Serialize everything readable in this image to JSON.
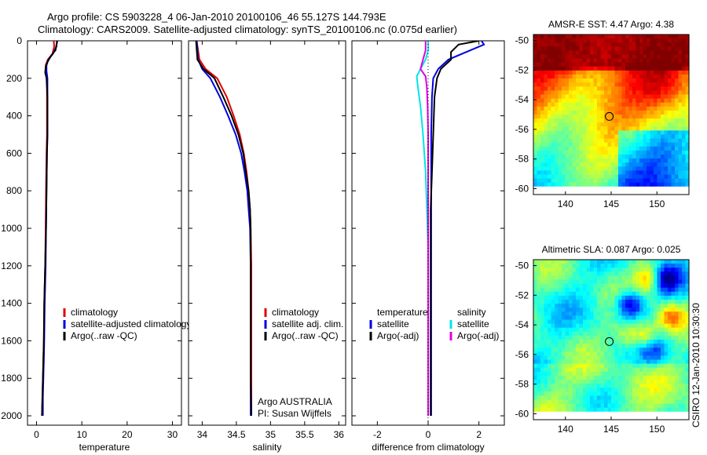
{
  "header": {
    "line1": "Argo profile: CS 5903228_4 06-Jan-2010 20100106_46 55.127S 144.793E",
    "line2": "Climatology: CARS2009. Satellite-adjusted climatology: synTS_20100106.nc (0.075d earlier)"
  },
  "credit": "CSIRO 12-Jan-2010 10:30:30",
  "colors": {
    "climatology": "#e00000",
    "satellite": "#0000e0",
    "argo": "#000000",
    "cyan": "#00e5e5",
    "magenta": "#e000e0",
    "ocean_red": "#a81a00"
  },
  "chart_data": [
    {
      "type": "line",
      "name": "temperature",
      "xlabel": "temperature",
      "ylabel": "",
      "xlim": [
        -2,
        32
      ],
      "ylim": [
        2050,
        0
      ],
      "xticks": [
        0,
        10,
        20,
        30
      ],
      "yticks": [
        0,
        200,
        400,
        600,
        800,
        1000,
        1200,
        1400,
        1600,
        1800,
        2000
      ],
      "legend": [
        "climatology",
        "satellite-adjusted climatology",
        "Argo(..raw -QC)"
      ],
      "series": [
        {
          "name": "climatology",
          "color": "#e00000",
          "x": [
            3.8,
            3.9,
            3.5,
            2.5,
            2.0,
            2.1,
            2.3,
            2.3,
            2.3,
            2.3,
            2.2,
            2.1,
            2.0,
            1.9,
            1.7,
            1.6,
            1.5,
            1.4,
            1.3,
            1.2
          ],
          "y": [
            0,
            30,
            70,
            100,
            130,
            160,
            200,
            300,
            400,
            500,
            600,
            800,
            1000,
            1200,
            1400,
            1600,
            1700,
            1800,
            1900,
            2000
          ]
        },
        {
          "name": "satellite-adjusted climatology",
          "color": "#0000e0",
          "x": [
            4.5,
            4.4,
            3.6,
            2.6,
            2.2,
            2.2,
            2.4,
            2.4,
            2.4,
            2.4,
            2.3,
            2.2,
            2.1,
            2.0,
            1.8,
            1.7,
            1.6,
            1.5,
            1.4,
            1.4
          ],
          "y": [
            0,
            30,
            70,
            100,
            130,
            160,
            200,
            300,
            400,
            500,
            600,
            800,
            1000,
            1200,
            1400,
            1600,
            1700,
            1800,
            1900,
            2000
          ]
        },
        {
          "name": "Argo(..raw -QC)",
          "color": "#000000",
          "x": [
            4.6,
            4.4,
            4.2,
            3.2,
            2.5,
            2.0,
            1.9,
            2.2,
            2.4,
            2.4,
            2.4,
            2.3,
            2.2,
            2.1,
            1.9,
            1.7,
            1.6,
            1.5,
            1.4,
            1.3,
            1.2
          ],
          "y": [
            0,
            20,
            50,
            80,
            110,
            140,
            170,
            200,
            300,
            400,
            500,
            600,
            800,
            1000,
            1200,
            1400,
            1600,
            1700,
            1800,
            1900,
            2000
          ]
        }
      ],
      "annotations": []
    },
    {
      "type": "line",
      "name": "salinity",
      "xlabel": "salinity",
      "xlim": [
        33.8,
        36.1
      ],
      "ylim": [
        2050,
        0
      ],
      "xticks": [
        34,
        34.5,
        35,
        35.5,
        36
      ],
      "xticklabels": [
        "34",
        "34.5",
        "35",
        "35.5",
        "36"
      ],
      "legend": [
        "climatology",
        "satellite adj. clim.",
        "Argo(..raw -QC)"
      ],
      "series": [
        {
          "name": "climatology",
          "color": "#e00000",
          "x": [
            33.92,
            33.96,
            34.05,
            34.22,
            34.36,
            34.46,
            34.55,
            34.61,
            34.65,
            34.68,
            34.7,
            34.71,
            34.72,
            34.72,
            34.72,
            34.72,
            34.72
          ],
          "y": [
            0,
            100,
            150,
            200,
            300,
            400,
            500,
            600,
            700,
            800,
            900,
            1000,
            1200,
            1400,
            1600,
            1800,
            2000
          ]
        },
        {
          "name": "satellite adj. clim.",
          "color": "#0000e0",
          "x": [
            33.92,
            33.94,
            34.0,
            34.12,
            34.26,
            34.38,
            34.49,
            34.57,
            34.62,
            34.66,
            34.68,
            34.7,
            34.71,
            34.71,
            34.71,
            34.71,
            34.71
          ],
          "y": [
            0,
            100,
            150,
            200,
            300,
            400,
            500,
            600,
            700,
            800,
            900,
            1000,
            1200,
            1400,
            1600,
            1800,
            2000
          ]
        },
        {
          "name": "Argo(..raw -QC)",
          "color": "#000000",
          "x": [
            33.91,
            33.93,
            34.02,
            34.18,
            34.31,
            34.43,
            34.53,
            34.6,
            34.64,
            34.68,
            34.7,
            34.71,
            34.71,
            34.71,
            34.71,
            34.71,
            34.72
          ],
          "y": [
            0,
            100,
            150,
            200,
            300,
            400,
            500,
            600,
            700,
            800,
            900,
            1000,
            1200,
            1400,
            1600,
            1800,
            2000
          ]
        }
      ],
      "annotations": [
        "Argo AUSTRALIA",
        "PI: Susan Wijffels"
      ]
    },
    {
      "type": "line",
      "name": "difference",
      "xlabel": "difference from climatology",
      "xlim": [
        -3,
        3
      ],
      "ylim": [
        2050,
        0
      ],
      "xticks": [
        -2,
        0,
        2
      ],
      "legend_groups": [
        {
          "title": "temperature",
          "items": [
            "satellite",
            "Argo(-adj)"
          ]
        },
        {
          "title": "salinity",
          "items": [
            "satellite",
            "Argo(-adj)"
          ]
        }
      ],
      "series": [
        {
          "name": "temperature satellite",
          "color": "#0000e0",
          "x": [
            2.1,
            2.2,
            1.5,
            0.8,
            0.4,
            0.2,
            0.15,
            0.12,
            0.12,
            0.12,
            0.12,
            0.12,
            0.12,
            0.12,
            0.12,
            0.12
          ],
          "y": [
            0,
            20,
            60,
            100,
            150,
            200,
            300,
            500,
            700,
            900,
            1100,
            1300,
            1500,
            1700,
            1900,
            2000
          ]
        },
        {
          "name": "temperature Argo(-adj)",
          "color": "#000000",
          "x": [
            2.0,
            1.2,
            0.9,
            0.9,
            0.5,
            0.35,
            0.25,
            0.2,
            0.15,
            0.1,
            0.1,
            0.1,
            0.1,
            0.1,
            0.1,
            0.1
          ],
          "y": [
            0,
            20,
            60,
            100,
            150,
            200,
            300,
            500,
            700,
            900,
            1100,
            1300,
            1500,
            1700,
            1900,
            2000
          ]
        },
        {
          "name": "salinity satellite",
          "color": "#00e5e5",
          "x": [
            0,
            0,
            -0.1,
            -0.3,
            -0.45,
            -0.4,
            -0.3,
            -0.2,
            -0.1,
            -0.05,
            0,
            0,
            0,
            0,
            0,
            0
          ],
          "y": [
            0,
            50,
            100,
            150,
            190,
            250,
            350,
            500,
            700,
            900,
            1100,
            1300,
            1500,
            1700,
            1900,
            2000
          ]
        },
        {
          "name": "salinity Argo(-adj)",
          "color": "#e000e0",
          "x": [
            -0.1,
            -0.1,
            -0.2,
            -0.3,
            -0.1,
            -0.05,
            -0.02,
            0,
            0,
            0,
            0,
            0,
            0,
            0,
            0,
            0
          ],
          "y": [
            0,
            50,
            100,
            150,
            190,
            250,
            350,
            500,
            700,
            900,
            1100,
            1300,
            1500,
            1700,
            1900,
            2000
          ]
        }
      ],
      "annotations": []
    },
    {
      "type": "heatmap",
      "name": "sst_map",
      "title": "AMSR-E SST: 4.47 Argo: 4.38",
      "xlim": [
        136.5,
        153.5
      ],
      "ylim": [
        -60.4,
        -49.6
      ],
      "xticks": [
        140,
        145,
        150
      ],
      "yticks": [
        -50,
        -52,
        -54,
        -56,
        -58,
        -60
      ],
      "argo_position": [
        144.793,
        -55.127
      ],
      "colormap": "jet"
    },
    {
      "type": "heatmap",
      "name": "sla_map",
      "title": "Altimetric SLA: 0.087 Argo: 0.025",
      "xlim": [
        136.5,
        153.5
      ],
      "ylim": [
        -60.4,
        -49.6
      ],
      "xticks": [
        140,
        145,
        150
      ],
      "yticks": [
        -50,
        -52,
        -54,
        -56,
        -58,
        -60
      ],
      "argo_position": [
        144.793,
        -55.127
      ],
      "colormap": "jet"
    }
  ]
}
